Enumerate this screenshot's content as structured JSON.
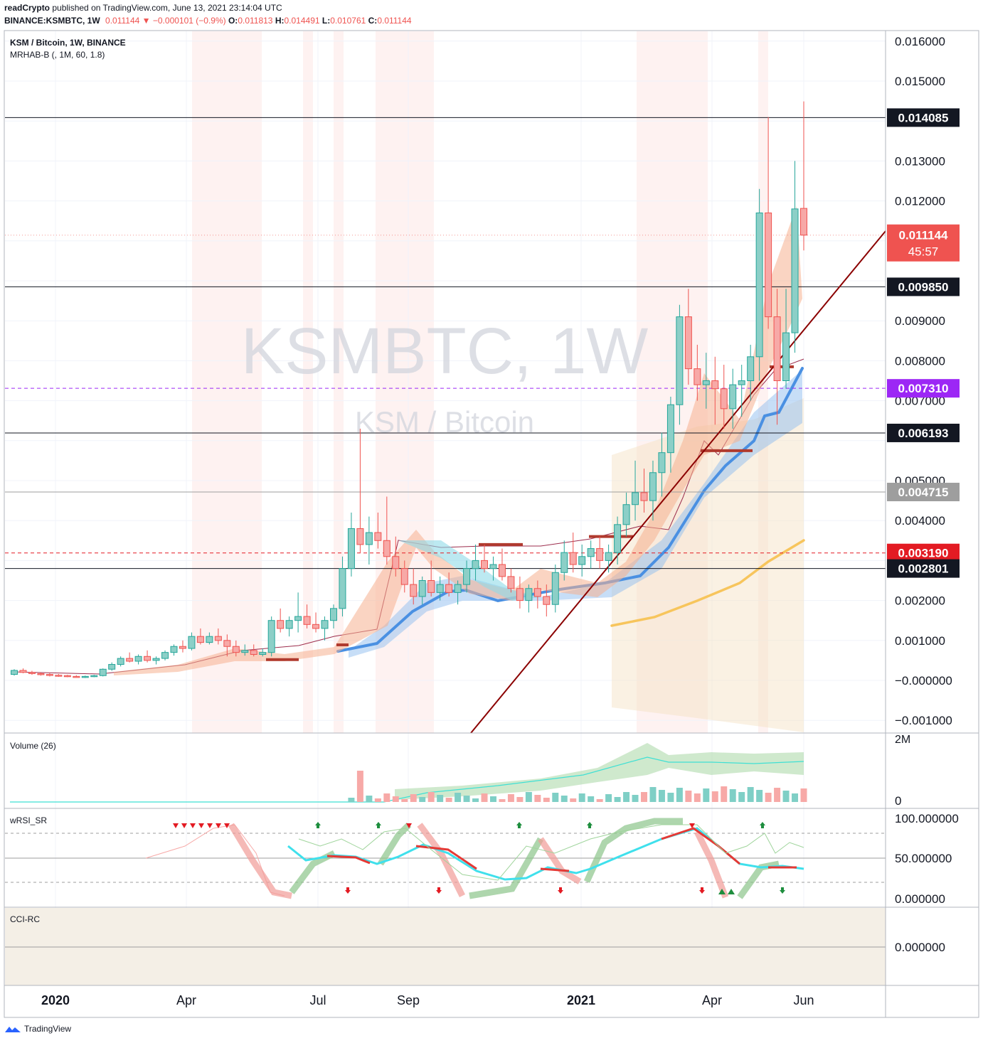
{
  "header": {
    "author": "readCrypto",
    "published": "published on TradingView.com, June 13, 2021 23:14:04 UTC",
    "symbol": "BINANCE:KSMBTC, 1W",
    "last": "0.011144",
    "change": "−0.000101 (−0.9%)",
    "o_label": "O:",
    "o": "0.011813",
    "h_label": "H:",
    "h": "0.014491",
    "l_label": "L:",
    "l": "0.010761",
    "c_label": "C:",
    "c": "0.011144"
  },
  "legend": {
    "title": "KSM / Bitcoin, 1W, BINANCE",
    "indicator": "MRHAB-B (, 1M, 60, 1.8)",
    "volume": "Volume (26)",
    "wrsi": "wRSI_SR",
    "cci": "CCI-RC"
  },
  "watermark": {
    "main": "KSMBTC, 1W",
    "sub": "KSM / Bitcoin"
  },
  "price_axis": [
    "0.016000",
    "0.015000",
    "0.013000",
    "0.012000",
    "0.009000",
    "0.008000",
    "0.007000",
    "0.005000",
    "0.004000",
    "0.002000",
    "0.001000",
    "−0.000000",
    "−0.001000"
  ],
  "levels": [
    {
      "value": "0.014085",
      "price": 0.014085,
      "color": "#131722",
      "style": "solid"
    },
    {
      "value": "0.009850",
      "price": 0.00985,
      "color": "#131722",
      "style": "solid"
    },
    {
      "value": "0.007310",
      "price": 0.00731,
      "color": "#9c27f5",
      "style": "dashed"
    },
    {
      "value": "0.006193",
      "price": 0.006193,
      "color": "#131722",
      "style": "solid"
    },
    {
      "value": "0.004715",
      "price": 0.004715,
      "color": "#9e9e9e",
      "style": "solid"
    },
    {
      "value": "0.003190",
      "price": 0.00319,
      "color": "#e31b23",
      "style": "dashed"
    },
    {
      "value": "0.002801",
      "price": 0.002801,
      "color": "#131722",
      "style": "solid"
    }
  ],
  "current": {
    "value": "0.011144",
    "price": 0.011144,
    "countdown": "45:57",
    "color": "#ef5350"
  },
  "volume_axis": [
    "2M",
    "0"
  ],
  "rsi_axis": [
    "100.000000",
    "50.000000",
    "0.000000"
  ],
  "cci_axis": [
    "0.000000"
  ],
  "time_axis": [
    {
      "label": "2020",
      "bold": true
    },
    {
      "label": "Apr",
      "bold": false
    },
    {
      "label": "Jul",
      "bold": false
    },
    {
      "label": "Sep",
      "bold": false
    },
    {
      "label": "2021",
      "bold": true
    },
    {
      "label": "Apr",
      "bold": false
    },
    {
      "label": "Jun",
      "bold": false
    }
  ],
  "footer": {
    "brand": "TradingView"
  },
  "colors": {
    "up": "#26a69a",
    "down": "#ef5350",
    "up_fill": "#8ccfc7",
    "down_fill": "#f7a9a7"
  },
  "chart_data": {
    "type": "candlestick",
    "interval": "1W",
    "series": [
      {
        "name": "KSM / Bitcoin",
        "note": "weekly candles from Dec 2019 to Jun 2021"
      }
    ],
    "candles_ohlc": [
      [
        0.00015,
        0.00028,
        0.00012,
        0.00025
      ],
      [
        0.00025,
        0.0003,
        0.00018,
        0.0002
      ],
      [
        0.0002,
        0.00024,
        0.00014,
        0.00017
      ],
      [
        0.00017,
        0.0002,
        0.00012,
        0.00015
      ],
      [
        0.00015,
        0.00018,
        0.0001,
        0.00013
      ],
      [
        0.00013,
        0.00016,
        9e-05,
        0.00012
      ],
      [
        0.00012,
        0.00014,
        8e-05,
        0.0001
      ],
      [
        0.0001,
        0.00013,
        7e-05,
        9e-05
      ],
      [
        9e-05,
        0.00012,
        6e-05,
        0.0001
      ],
      [
        0.0001,
        0.00014,
        8e-05,
        0.00012
      ],
      [
        0.00012,
        0.0003,
        0.0001,
        0.00028
      ],
      [
        0.00028,
        0.00045,
        0.00024,
        0.0004
      ],
      [
        0.0004,
        0.0006,
        0.00035,
        0.00055
      ],
      [
        0.00055,
        0.0007,
        0.00045,
        0.00048
      ],
      [
        0.00048,
        0.00065,
        0.0004,
        0.0006
      ],
      [
        0.0006,
        0.00075,
        0.00045,
        0.0005
      ],
      [
        0.0005,
        0.0006,
        0.0004,
        0.00055
      ],
      [
        0.00055,
        0.00075,
        0.0005,
        0.0007
      ],
      [
        0.0007,
        0.0009,
        0.00062,
        0.00085
      ],
      [
        0.00085,
        0.001,
        0.0007,
        0.0008
      ],
      [
        0.0008,
        0.0012,
        0.00075,
        0.0011
      ],
      [
        0.0011,
        0.0013,
        0.0009,
        0.00095
      ],
      [
        0.00095,
        0.0012,
        0.0009,
        0.0011
      ],
      [
        0.0011,
        0.0013,
        0.0009,
        0.001
      ],
      [
        0.001,
        0.00115,
        0.0006,
        0.00085
      ],
      [
        0.00085,
        0.001,
        0.0006,
        0.0007
      ],
      [
        0.0007,
        0.0009,
        0.00062,
        0.00075
      ],
      [
        0.00075,
        0.0009,
        0.0006,
        0.00065
      ],
      [
        0.00065,
        0.0008,
        0.0006,
        0.0007
      ],
      [
        0.0007,
        0.0016,
        0.0006,
        0.0015
      ],
      [
        0.0015,
        0.0018,
        0.0012,
        0.0013
      ],
      [
        0.0013,
        0.0016,
        0.0011,
        0.0015
      ],
      [
        0.0015,
        0.0022,
        0.0012,
        0.0016
      ],
      [
        0.0016,
        0.0019,
        0.0013,
        0.0014
      ],
      [
        0.0014,
        0.0017,
        0.0012,
        0.0013
      ],
      [
        0.0013,
        0.0016,
        0.001,
        0.0015
      ],
      [
        0.0015,
        0.0019,
        0.0013,
        0.0018
      ],
      [
        0.0018,
        0.0031,
        0.0016,
        0.0028
      ],
      [
        0.0028,
        0.0042,
        0.0026,
        0.0038
      ],
      [
        0.0038,
        0.0063,
        0.0032,
        0.0034
      ],
      [
        0.0034,
        0.0041,
        0.0029,
        0.0037
      ],
      [
        0.0037,
        0.0042,
        0.0033,
        0.0035
      ],
      [
        0.0035,
        0.0046,
        0.0029,
        0.0031
      ],
      [
        0.0031,
        0.0036,
        0.0026,
        0.0028
      ],
      [
        0.0028,
        0.003,
        0.0022,
        0.0024
      ],
      [
        0.0024,
        0.0028,
        0.0019,
        0.0021
      ],
      [
        0.0021,
        0.0026,
        0.0019,
        0.0025
      ],
      [
        0.0025,
        0.003,
        0.0021,
        0.0022
      ],
      [
        0.0022,
        0.0026,
        0.002,
        0.0024
      ],
      [
        0.0024,
        0.0027,
        0.0021,
        0.0022
      ],
      [
        0.0022,
        0.0025,
        0.0019,
        0.0024
      ],
      [
        0.0024,
        0.003,
        0.0022,
        0.0028
      ],
      [
        0.0028,
        0.0034,
        0.0025,
        0.003
      ],
      [
        0.003,
        0.0034,
        0.0027,
        0.0028
      ],
      [
        0.0028,
        0.0031,
        0.0025,
        0.0029
      ],
      [
        0.0029,
        0.0033,
        0.0025,
        0.0026
      ],
      [
        0.0026,
        0.0028,
        0.0022,
        0.0023
      ],
      [
        0.0023,
        0.0026,
        0.0018,
        0.002
      ],
      [
        0.002,
        0.0024,
        0.0017,
        0.0023
      ],
      [
        0.0023,
        0.0025,
        0.0018,
        0.0021
      ],
      [
        0.0021,
        0.0024,
        0.0016,
        0.0019
      ],
      [
        0.0019,
        0.0029,
        0.0017,
        0.0027
      ],
      [
        0.0027,
        0.0035,
        0.0025,
        0.0032
      ],
      [
        0.0032,
        0.0037,
        0.0027,
        0.0029
      ],
      [
        0.0029,
        0.0034,
        0.0026,
        0.0031
      ],
      [
        0.0031,
        0.0035,
        0.0028,
        0.0033
      ],
      [
        0.0033,
        0.0036,
        0.0028,
        0.003
      ],
      [
        0.003,
        0.0034,
        0.0027,
        0.0032
      ],
      [
        0.0032,
        0.0041,
        0.0029,
        0.0039
      ],
      [
        0.0039,
        0.0047,
        0.0036,
        0.0044
      ],
      [
        0.0044,
        0.0055,
        0.004,
        0.0047
      ],
      [
        0.0047,
        0.0053,
        0.0042,
        0.0045
      ],
      [
        0.0045,
        0.0055,
        0.004,
        0.0052
      ],
      [
        0.0052,
        0.0062,
        0.0046,
        0.0057
      ],
      [
        0.0057,
        0.0071,
        0.0052,
        0.0069
      ],
      [
        0.0069,
        0.0094,
        0.0064,
        0.0091
      ],
      [
        0.0091,
        0.0098,
        0.0074,
        0.0078
      ],
      [
        0.0078,
        0.0084,
        0.007,
        0.0074
      ],
      [
        0.0074,
        0.0082,
        0.0068,
        0.0075
      ],
      [
        0.0075,
        0.0081,
        0.0064,
        0.0073
      ],
      [
        0.0073,
        0.0079,
        0.0063,
        0.0068
      ],
      [
        0.0068,
        0.0078,
        0.0063,
        0.0074
      ],
      [
        0.0074,
        0.0079,
        0.0066,
        0.0075
      ],
      [
        0.0075,
        0.0084,
        0.007,
        0.0081
      ],
      [
        0.0081,
        0.0123,
        0.0075,
        0.0117
      ],
      [
        0.0117,
        0.0141,
        0.0088,
        0.0091
      ],
      [
        0.0091,
        0.0098,
        0.0064,
        0.0075
      ],
      [
        0.0075,
        0.0098,
        0.0073,
        0.0087
      ],
      [
        0.0087,
        0.013,
        0.0082,
        0.0118
      ],
      [
        0.011813,
        0.014491,
        0.010761,
        0.011144
      ]
    ],
    "ylim": [
      -0.0012,
      0.0164
    ],
    "x_range": [
      "2019-12",
      "2021-06"
    ],
    "price_lines": [
      0.014085,
      0.00985,
      0.00731,
      0.006193,
      0.004715,
      0.00319,
      0.002801
    ],
    "trendline": {
      "from": [
        0.0,
        -0.0015
      ],
      "to": [
        1.0,
        0.0113
      ]
    }
  }
}
